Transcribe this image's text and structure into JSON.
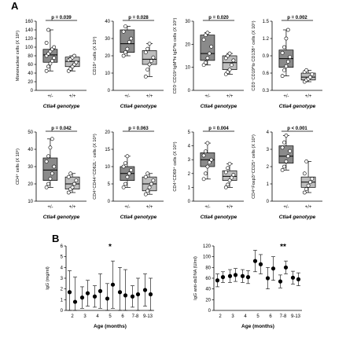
{
  "panel_labels": {
    "a": "A",
    "b": "B"
  },
  "genotype_axis_label": "Ctla4 genotype",
  "chart_data": [
    {
      "id": "mono",
      "type": "box",
      "ylabel": "Mononuclear cells (X 10⁶)",
      "ylim": [
        0,
        160
      ],
      "yticks": [
        "0",
        "20",
        "40",
        "60",
        "80",
        "100",
        "120",
        "140",
        "160"
      ],
      "p_value": "p = 0.039",
      "categories": [
        "+/-",
        "+/+"
      ],
      "boxes": [
        {
          "min": 45,
          "q1": 65,
          "median": 82,
          "q3": 95,
          "max": 140,
          "points": [
            45,
            55,
            62,
            68,
            75,
            80,
            85,
            90,
            95,
            100,
            110,
            140
          ]
        },
        {
          "min": 45,
          "q1": 55,
          "median": 67,
          "q3": 77,
          "max": 80,
          "points": [
            45,
            50,
            55,
            60,
            65,
            70,
            72,
            76,
            80
          ]
        }
      ]
    },
    {
      "id": "cd19",
      "type": "box",
      "ylabel": "CD19⁺ cells (X 10⁶)",
      "ylim": [
        0,
        40
      ],
      "yticks": [
        "0",
        "10",
        "20",
        "30",
        "40"
      ],
      "p_value": "p = 0.028",
      "categories": [
        "+/-",
        "+/+"
      ],
      "boxes": [
        {
          "min": 20,
          "q1": 22,
          "median": 27,
          "q3": 35,
          "max": 37,
          "points": [
            20,
            22,
            24,
            28,
            30,
            34,
            37
          ]
        },
        {
          "min": 8,
          "q1": 15,
          "median": 18,
          "q3": 23,
          "max": 27,
          "points": [
            8,
            12,
            15,
            17,
            19,
            22,
            24,
            27
          ]
        }
      ]
    },
    {
      "id": "igd",
      "type": "box",
      "ylabel": "CD3⁻CD19⁺IgM^hi IgD^lo cells (X 10⁶)",
      "ylim": [
        0,
        30
      ],
      "yticks": [
        "0",
        "10",
        "20",
        "30"
      ],
      "p_value": "p = 0.020",
      "categories": [
        "+/-",
        "+/+"
      ],
      "boxes": [
        {
          "min": 11,
          "q1": 13,
          "median": 16,
          "q3": 24,
          "max": 25,
          "points": [
            11,
            12,
            14,
            16,
            19,
            22,
            24,
            25
          ]
        },
        {
          "min": 7,
          "q1": 9,
          "median": 12,
          "q3": 15,
          "max": 16,
          "points": [
            7,
            8,
            9,
            11,
            13,
            14,
            15,
            16
          ]
        }
      ]
    },
    {
      "id": "cd138",
      "type": "box",
      "ylabel": "CD3⁻CD19^lo CD138⁺ cells (X 10⁶)",
      "ylim": [
        0.3,
        1.5
      ],
      "yticks": [
        "0.3",
        "0.6",
        "0.9",
        "1.2",
        "1.5"
      ],
      "p_value": "p = 0.002",
      "categories": [
        "+/-",
        "+/+"
      ],
      "boxes": [
        {
          "min": 0.55,
          "q1": 0.7,
          "median": 0.85,
          "q3": 1.0,
          "max": 1.35,
          "points": [
            0.55,
            0.65,
            0.72,
            0.8,
            0.88,
            0.95,
            1.05,
            1.2,
            1.35
          ]
        },
        {
          "min": 0.45,
          "q1": 0.48,
          "median": 0.53,
          "q3": 0.6,
          "max": 0.65,
          "points": [
            0.45,
            0.48,
            0.5,
            0.53,
            0.58,
            0.62,
            0.65
          ]
        }
      ]
    },
    {
      "id": "cd4",
      "type": "box",
      "ylabel": "CD4⁺ cells (X 10⁶)",
      "ylim": [
        10,
        50
      ],
      "yticks": [
        "10",
        "20",
        "30",
        "40",
        "50"
      ],
      "p_value": "p = 0.042",
      "categories": [
        "+/-",
        "+/+"
      ],
      "boxes": [
        {
          "min": 18,
          "q1": 22,
          "median": 28,
          "q3": 35,
          "max": 46,
          "points": [
            18,
            20,
            23,
            26,
            30,
            33,
            36,
            41,
            46
          ]
        },
        {
          "min": 15,
          "q1": 17,
          "median": 20,
          "q3": 24,
          "max": 26,
          "points": [
            15,
            17,
            18,
            20,
            22,
            24,
            26
          ]
        }
      ]
    },
    {
      "id": "cd62l",
      "type": "box",
      "ylabel": "CD4⁺CD44⁺CD62L⁻ cells (X 10⁶)",
      "ylim": [
        0,
        20
      ],
      "yticks": [
        "0",
        "5",
        "10",
        "15",
        "20"
      ],
      "p_value": "p = 0.063",
      "categories": [
        "+/-",
        "+/+"
      ],
      "boxes": [
        {
          "min": 4,
          "q1": 6,
          "median": 8,
          "q3": 10,
          "max": 13,
          "points": [
            4,
            5,
            7,
            8,
            9,
            10,
            11,
            13
          ]
        },
        {
          "min": 2,
          "q1": 3,
          "median": 5,
          "q3": 7,
          "max": 8,
          "points": [
            2,
            3,
            4,
            5,
            6,
            7,
            8
          ]
        }
      ]
    },
    {
      "id": "cd69",
      "type": "box",
      "ylabel": "CD4⁺CD69⁺ cells (X 10⁶)",
      "ylim": [
        0,
        5
      ],
      "yticks": [
        "0",
        "1",
        "2",
        "3",
        "4",
        "5"
      ],
      "p_value": "p = 0.004",
      "categories": [
        "+/-",
        "+/+"
      ],
      "boxes": [
        {
          "min": 1.6,
          "q1": 2.5,
          "median": 3.0,
          "q3": 3.5,
          "max": 4.2,
          "points": [
            1.6,
            2.0,
            2.5,
            2.8,
            3.0,
            3.3,
            3.6,
            4.2
          ]
        },
        {
          "min": 1.0,
          "q1": 1.5,
          "median": 1.8,
          "q3": 2.2,
          "max": 2.7,
          "points": [
            1.0,
            1.2,
            1.5,
            1.7,
            1.9,
            2.1,
            2.4,
            2.7
          ]
        }
      ]
    },
    {
      "id": "foxp3",
      "type": "box",
      "ylabel": "CD4⁺Foxp3⁺CD25⁺ cells (X 10⁶)",
      "ylim": [
        0,
        4
      ],
      "yticks": [
        "0",
        "1",
        "2",
        "3",
        "4"
      ],
      "p_value": "p < 0.001",
      "categories": [
        "+/-",
        "+/+"
      ],
      "boxes": [
        {
          "min": 1.8,
          "q1": 2.2,
          "median": 2.6,
          "q3": 3.2,
          "max": 3.8,
          "points": [
            1.8,
            2.0,
            2.3,
            2.6,
            2.9,
            3.1,
            3.4,
            3.8
          ]
        },
        {
          "min": 0.5,
          "q1": 0.8,
          "median": 1.1,
          "q3": 1.4,
          "max": 2.3,
          "points": [
            0.5,
            0.7,
            0.9,
            1.1,
            1.3,
            1.6,
            2.3
          ]
        }
      ]
    },
    {
      "id": "igg",
      "type": "scatter_errorbar",
      "ylabel": "IgG (mg/ml)",
      "xlabel": "Age (months)",
      "ylim": [
        0,
        6
      ],
      "yticks": [
        "0",
        "1",
        "2",
        "3",
        "4",
        "5",
        "6"
      ],
      "categories": [
        "2",
        "3",
        "4",
        "5",
        "6",
        "7-8",
        "9-13"
      ],
      "star": {
        "category": "5",
        "text": "*"
      },
      "series": [
        {
          "values": [
            1.7,
            1.2,
            1.3,
            1.1,
            1.7,
            1.3,
            1.9
          ],
          "errors": [
            2.0,
            1.0,
            1.0,
            1.4,
            2.3,
            1.0,
            1.5
          ]
        },
        {
          "values": [
            0.8,
            1.6,
            1.8,
            2.4,
            1.4,
            1.5,
            1.5
          ],
          "errors": [
            2.3,
            1.2,
            1.6,
            2.2,
            2.4,
            1.5,
            1.5
          ]
        }
      ]
    },
    {
      "id": "dsdna",
      "type": "scatter_errorbar",
      "ylabel": "IgG anti-dsDNA (U/ml)",
      "xlabel": "Age (months)",
      "ylim": [
        0,
        120
      ],
      "yticks": [
        "0",
        "20",
        "40",
        "60",
        "80",
        "100",
        "120"
      ],
      "categories": [
        "2",
        "3",
        "4",
        "5",
        "6",
        "7-8",
        "9-13"
      ],
      "star": {
        "category": "7-8",
        "text": "**"
      },
      "series": [
        {
          "values": [
            56,
            64,
            64,
            92,
            60,
            54,
            61
          ],
          "errors": [
            12,
            12,
            12,
            20,
            20,
            12,
            12
          ]
        },
        {
          "values": [
            62,
            66,
            62,
            86,
            78,
            80,
            58
          ],
          "errors": [
            10,
            12,
            12,
            18,
            22,
            12,
            12
          ]
        }
      ]
    }
  ]
}
